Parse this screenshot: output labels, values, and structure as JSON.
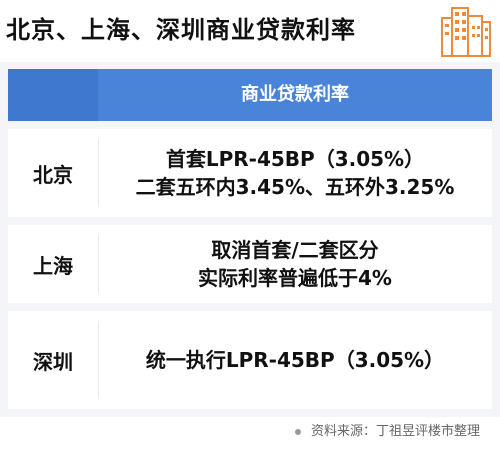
{
  "title": "北京、上海、深圳商业贷款利率",
  "logo_icon": "buildings-icon",
  "table": {
    "header": "商业贷款利率",
    "rows": [
      {
        "city": "北京",
        "line1": "首套LPR-45BP（3.05%）",
        "line2": "二套五环内3.45%、五环外3.25%"
      },
      {
        "city": "上海",
        "line1": "取消首套/二套区分",
        "line2": "实际利率普遍低于4%"
      },
      {
        "city": "深圳",
        "line1": "统一执行LPR-45BP（3.05%）"
      }
    ]
  },
  "source": "资料来源：丁祖昱评楼市整理",
  "colors": {
    "header_bg": "#4a84d8",
    "table_bg": "#f3f5f8",
    "logo_orange": "#f08a3b"
  }
}
